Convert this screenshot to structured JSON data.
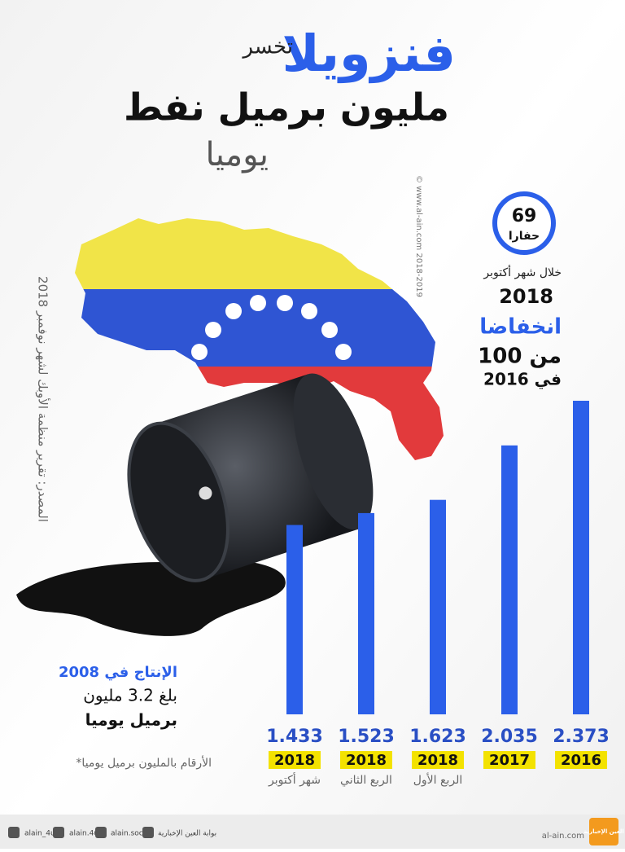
{
  "header": {
    "title": "فنزويلا",
    "verb": "تخسر",
    "line2": "مليون برميل نفط",
    "line3": "يوميا"
  },
  "rigs": {
    "number": "69",
    "unit": "حفارا",
    "period": "خلال شهر أكتوبر",
    "year": "2018",
    "drop": "انخفاضا",
    "from": "من 100",
    "in": "في 2016"
  },
  "note": {
    "title": "الإنتاج في 2008",
    "line1": "بلغ 3.2 مليون",
    "line2": "برميل يوميا"
  },
  "footnote": "*الأرقام بالمليون برميل يوميا",
  "source": "المصدر: تقرير منظمة الأوبك لشهر نوفمبر 2018",
  "watermark": "© www.al-ain.com 2018-2019",
  "chart_data": {
    "type": "bar",
    "categories": [
      "2018",
      "2018",
      "2018",
      "2017",
      "2016"
    ],
    "sublabels": [
      "شهر أكتوبر",
      "الربع الثاني",
      "الربع الأول",
      null,
      null
    ],
    "values": [
      1.433,
      1.523,
      1.623,
      2.035,
      2.373
    ],
    "color": "#2b5fe9",
    "label_highlight": "#f3e200"
  },
  "footer": {
    "twitter": "alain_4u",
    "instagram": "alain.4u",
    "facebook": "alain.social",
    "youtube": "بوابة العين الإخبارية",
    "site": "al-ain.com",
    "logo": "العين الإخبارية"
  }
}
